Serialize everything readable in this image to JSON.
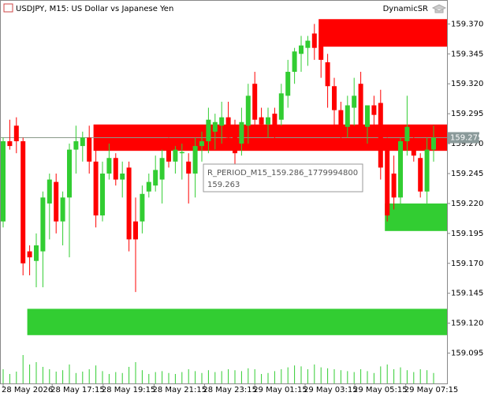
{
  "chart_data": {
    "type": "candlestick",
    "title": "USDJPY, M15: US Dollar vs Japanese Yen",
    "indicator": "DynamicSR",
    "bull_color": "#32cd32",
    "bear_color": "#ff0000",
    "ylim": [
      159.069,
      159.39
    ],
    "yticks": [
      {
        "value": 159.37,
        "label": "159.370"
      },
      159.345,
      {
        "value": 159.32,
        "label": "159.320"
      },
      159.295,
      {
        "value": 159.27,
        "label": "159.270"
      },
      159.245,
      {
        "value": 159.22,
        "label": "159.220"
      },
      159.195,
      {
        "value": 159.17,
        "label": "159.170"
      },
      159.145,
      {
        "value": 159.12,
        "label": "159.120"
      },
      159.095
    ],
    "xticks": [
      {
        "value": 0,
        "label": "28 May 2026"
      },
      {
        "value": 7.4,
        "label": "28 May 17:15"
      },
      {
        "value": 15.1,
        "label": "28 May 19:15"
      },
      {
        "value": 22.8,
        "label": "28 May 21:15"
      },
      {
        "value": 30.4,
        "label": "28 May 23:15"
      },
      {
        "value": 38,
        "label": "29 May 01:15"
      },
      {
        "value": 45.6,
        "label": "29 May 03:15"
      },
      {
        "value": 53.1,
        "label": "29 May 05:15"
      },
      {
        "value": 60.8,
        "label": "29 May 07:15"
      }
    ],
    "ohlc": [
      [
        159.205,
        159.275,
        159.2,
        159.272
      ],
      [
        159.272,
        159.29,
        159.265,
        159.268
      ],
      [
        159.285,
        159.292,
        159.262,
        159.272
      ],
      [
        159.272,
        159.275,
        159.16,
        159.17
      ],
      [
        159.18,
        159.185,
        159.16,
        159.175
      ],
      [
        159.172,
        159.195,
        159.15,
        159.185
      ],
      [
        159.18,
        159.23,
        159.15,
        159.225
      ],
      [
        159.22,
        159.245,
        159.19,
        159.24
      ],
      [
        159.238,
        159.245,
        159.195,
        159.205
      ],
      [
        159.205,
        159.23,
        159.185,
        159.225
      ],
      [
        159.225,
        159.27,
        159.175,
        159.265
      ],
      [
        159.265,
        159.285,
        159.245,
        159.272
      ],
      [
        159.268,
        159.28,
        159.255,
        159.275
      ],
      [
        159.275,
        159.285,
        159.245,
        159.255
      ],
      [
        159.255,
        159.265,
        159.2,
        159.21
      ],
      [
        159.21,
        159.255,
        159.205,
        159.245
      ],
      [
        159.245,
        159.27,
        159.24,
        159.258
      ],
      [
        159.258,
        159.262,
        159.235,
        159.24
      ],
      [
        159.24,
        159.255,
        159.225,
        159.245
      ],
      [
        159.25,
        159.255,
        159.18,
        159.19
      ],
      [
        159.205,
        159.225,
        159.146,
        159.19
      ],
      [
        159.205,
        159.235,
        159.195,
        159.228
      ],
      [
        159.23,
        159.245,
        159.225,
        159.238
      ],
      [
        159.235,
        159.26,
        159.23,
        159.248
      ],
      [
        159.24,
        159.265,
        159.22,
        159.258
      ],
      [
        159.265,
        159.275,
        159.25,
        159.255
      ],
      [
        159.255,
        159.268,
        159.245,
        159.265
      ],
      [
        159.262,
        159.27,
        159.24,
        159.263
      ],
      [
        159.255,
        159.262,
        159.22,
        159.245
      ],
      [
        159.245,
        159.275,
        159.225,
        159.268
      ],
      [
        159.268,
        159.28,
        159.255,
        159.272
      ],
      [
        159.272,
        159.3,
        159.262,
        159.29
      ],
      [
        159.28,
        159.295,
        159.265,
        159.288
      ],
      [
        159.285,
        159.305,
        159.27,
        159.292
      ],
      [
        159.292,
        159.305,
        159.268,
        159.275
      ],
      [
        159.285,
        159.29,
        159.25,
        159.262
      ],
      [
        159.27,
        159.3,
        159.26,
        159.288
      ],
      [
        159.285,
        159.32,
        159.27,
        159.31
      ],
      [
        159.32,
        159.33,
        159.28,
        159.29
      ],
      [
        159.292,
        159.3,
        159.28,
        159.286
      ],
      [
        159.286,
        159.3,
        159.275,
        159.292
      ],
      [
        159.295,
        159.3,
        159.27,
        159.282
      ],
      [
        159.29,
        159.32,
        159.285,
        159.312
      ],
      [
        159.31,
        159.34,
        159.3,
        159.33
      ],
      [
        159.33,
        159.35,
        159.32,
        159.347
      ],
      [
        159.345,
        159.36,
        159.33,
        159.352
      ],
      [
        159.35,
        159.36,
        159.335,
        159.356
      ],
      [
        159.362,
        159.37,
        159.34,
        159.35
      ],
      [
        159.352,
        159.36,
        159.325,
        159.34
      ],
      [
        159.338,
        159.345,
        159.3,
        159.318
      ],
      [
        159.318,
        159.325,
        159.28,
        159.298
      ],
      [
        159.298,
        159.305,
        159.27,
        159.284
      ],
      [
        159.284,
        159.31,
        159.275,
        159.302
      ],
      [
        159.3,
        159.325,
        159.285,
        159.31
      ],
      [
        159.32,
        159.33,
        159.28,
        159.284
      ],
      [
        159.284,
        159.3,
        159.27,
        159.302
      ],
      [
        159.302,
        159.31,
        159.285,
        159.294
      ],
      [
        159.304,
        159.315,
        159.24,
        159.25
      ],
      [
        159.27,
        159.275,
        159.205,
        159.21
      ],
      [
        159.245,
        159.26,
        159.215,
        159.225
      ],
      [
        159.225,
        159.275,
        159.215,
        159.272
      ],
      [
        159.272,
        159.31,
        159.26,
        159.284
      ],
      [
        159.27,
        159.28,
        159.255,
        159.26
      ],
      [
        159.258,
        159.262,
        159.225,
        159.23
      ],
      [
        159.23,
        159.275,
        159.22,
        159.265
      ],
      [
        159.265,
        159.285,
        159.255,
        159.275
      ]
    ],
    "volumes": [
      30,
      20,
      25,
      60,
      40,
      45,
      35,
      30,
      25,
      28,
      40,
      22,
      25,
      30,
      38,
      26,
      20,
      24,
      22,
      35,
      45,
      28,
      20,
      24,
      26,
      22,
      20,
      24,
      30,
      26,
      22,
      28,
      24,
      26,
      30,
      28,
      26,
      32,
      30,
      20,
      22,
      26,
      30,
      34,
      38,
      36,
      30,
      40,
      34,
      32,
      30,
      28,
      26,
      24,
      30,
      26,
      22,
      36,
      40,
      30,
      34,
      28,
      24,
      30,
      28,
      22
    ],
    "zones": [
      {
        "start": 48,
        "top": 159.374,
        "bottom": 159.351,
        "color": "#ff0000"
      },
      {
        "start": 14,
        "top": 159.286,
        "bottom": 159.264,
        "color": "#ff0000"
      },
      {
        "start": 58,
        "top": 159.22,
        "bottom": 159.197,
        "color": "#32cd32"
      },
      {
        "start": 4,
        "top": 159.132,
        "bottom": 159.11,
        "color": "#32cd32"
      }
    ],
    "current_price": 159.275,
    "tooltip": {
      "name": "R_PERIOD_M15_159.286_1779994800",
      "price": "159.263"
    }
  }
}
